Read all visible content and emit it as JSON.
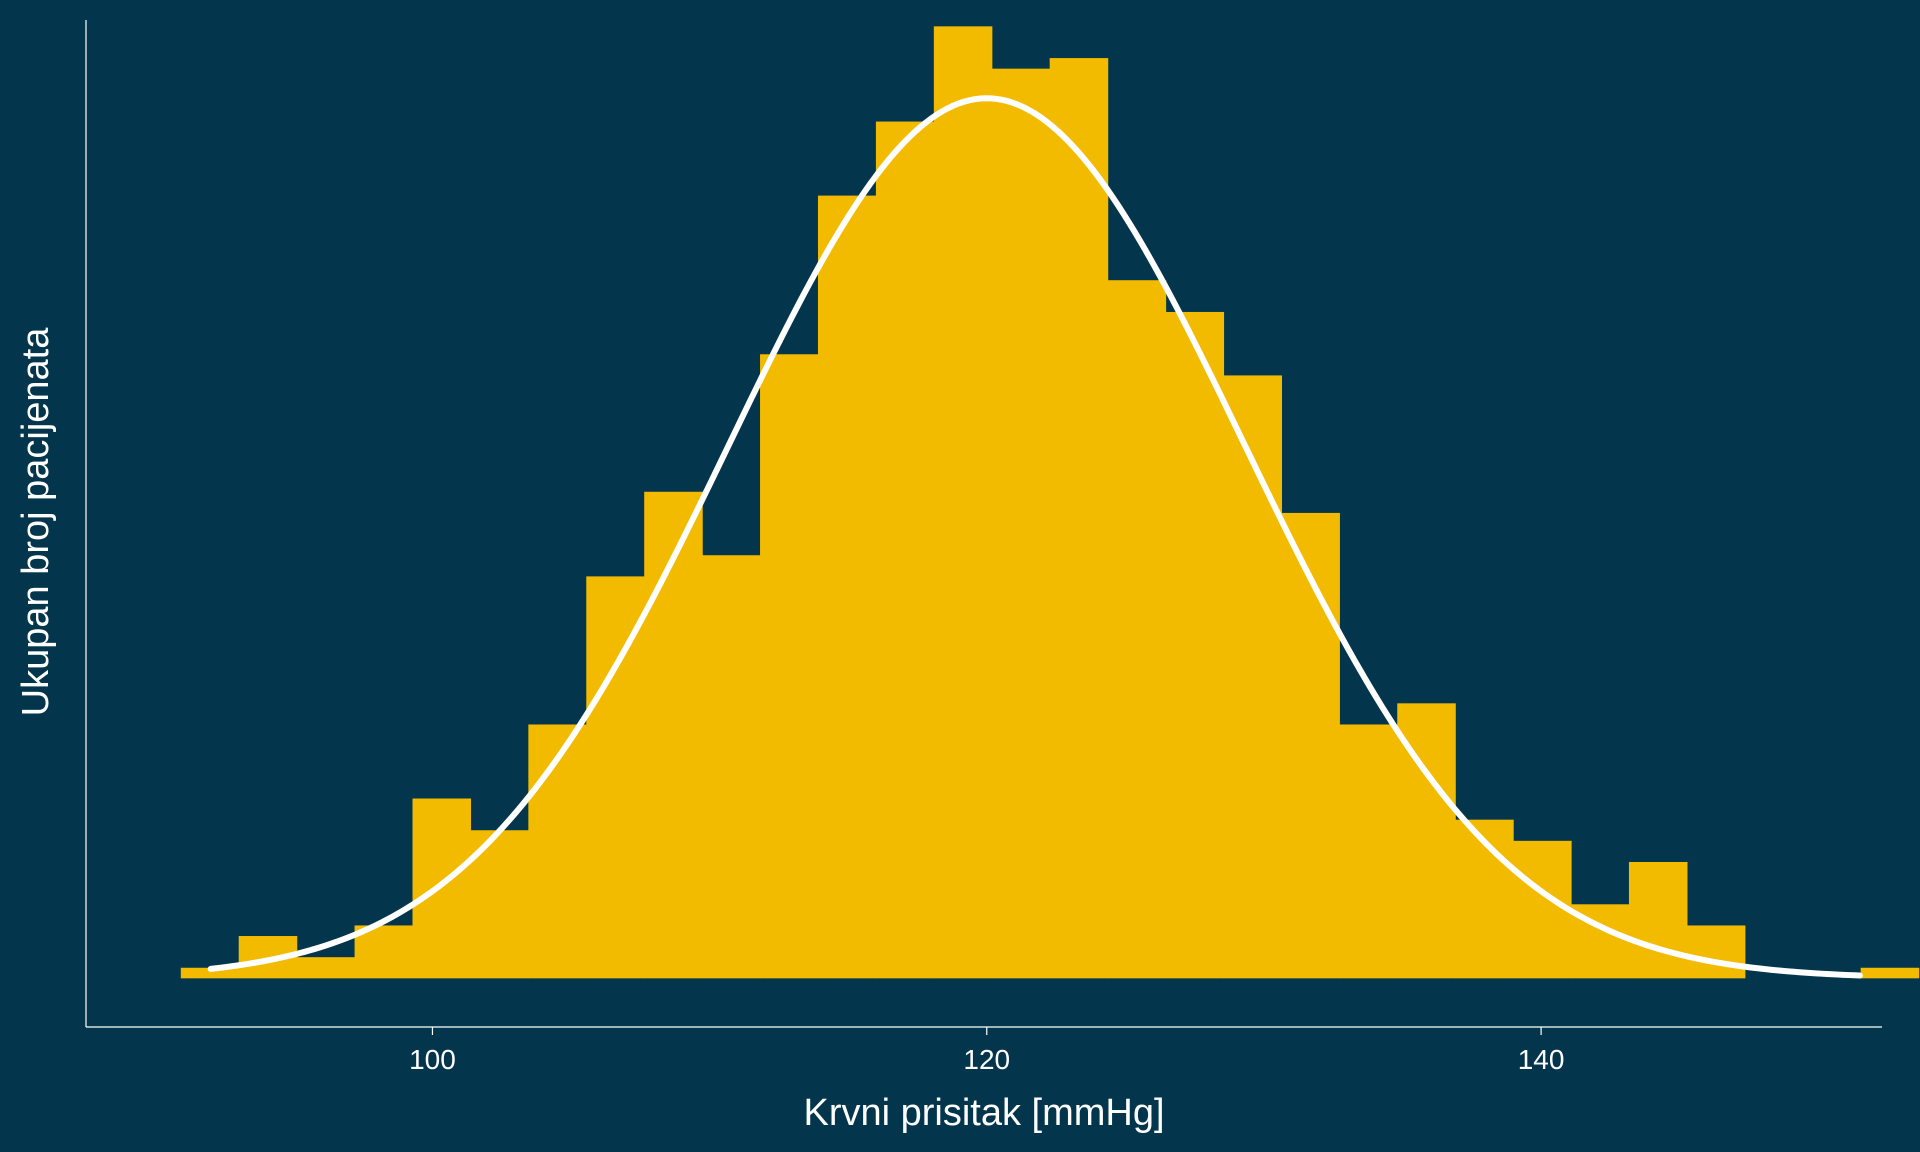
{
  "chart_data": {
    "type": "bar",
    "subtype": "histogram",
    "title": "",
    "xlabel": "Krvni prisitak [mmHg]",
    "ylabel": "Ukupan broj pacijenata",
    "xlim": [
      87.5,
      152.3
    ],
    "ylim": [
      -2.3,
      45.3
    ],
    "xticks": [
      100,
      120,
      140
    ],
    "y_tick_labels_shown": false,
    "grid": false,
    "bin_width": 2.09,
    "bin_start": 90.92,
    "bins": [
      {
        "x0": 90.92,
        "x1": 93.01,
        "count": 0.5
      },
      {
        "x0": 93.01,
        "x1": 95.1,
        "count": 2
      },
      {
        "x0": 95.1,
        "x1": 97.19,
        "count": 1
      },
      {
        "x0": 97.19,
        "x1": 99.28,
        "count": 2.5
      },
      {
        "x0": 99.28,
        "x1": 101.37,
        "count": 8.5
      },
      {
        "x0": 101.37,
        "x1": 103.46,
        "count": 7
      },
      {
        "x0": 103.46,
        "x1": 105.55,
        "count": 12
      },
      {
        "x0": 105.55,
        "x1": 107.64,
        "count": 19
      },
      {
        "x0": 107.64,
        "x1": 109.73,
        "count": 23
      },
      {
        "x0": 109.73,
        "x1": 111.82,
        "count": 20
      },
      {
        "x0": 111.82,
        "x1": 113.91,
        "count": 29.5
      },
      {
        "x0": 113.91,
        "x1": 116.0,
        "count": 37
      },
      {
        "x0": 116.0,
        "x1": 118.09,
        "count": 40.5
      },
      {
        "x0": 118.09,
        "x1": 120.18,
        "count": 45
      },
      {
        "x0": 120.18,
        "x1": 122.27,
        "count": 43
      },
      {
        "x0": 122.27,
        "x1": 124.36,
        "count": 43.5
      },
      {
        "x0": 124.36,
        "x1": 126.45,
        "count": 33
      },
      {
        "x0": 126.45,
        "x1": 128.54,
        "count": 31.5
      },
      {
        "x0": 128.54,
        "x1": 130.63,
        "count": 28.5
      },
      {
        "x0": 130.63,
        "x1": 132.72,
        "count": 22
      },
      {
        "x0": 132.72,
        "x1": 134.81,
        "count": 12
      },
      {
        "x0": 134.81,
        "x1": 136.9,
        "count": 13
      },
      {
        "x0": 136.9,
        "x1": 138.99,
        "count": 7.5
      },
      {
        "x0": 138.99,
        "x1": 141.08,
        "count": 6.5
      },
      {
        "x0": 141.08,
        "x1": 143.17,
        "count": 3.5
      },
      {
        "x0": 143.17,
        "x1": 145.26,
        "count": 5.5
      },
      {
        "x0": 145.26,
        "x1": 147.35,
        "count": 2.5
      },
      {
        "x0": 147.35,
        "x1": 149.44,
        "count": 0
      },
      {
        "x0": 149.44,
        "x1": 151.53,
        "count": 0
      },
      {
        "x0": 151.53,
        "x1": 153.62,
        "count": 0.5
      }
    ],
    "fit_curve": {
      "type": "normal",
      "mean": 120,
      "sd": 9.3,
      "peak": 41.6,
      "x_range": [
        92,
        151.5
      ]
    },
    "colors": {
      "background": "#03364d",
      "bars": "#f2bb00",
      "curve": "#ffffff",
      "axis": "#ffffff",
      "text": "#ffffff"
    }
  }
}
